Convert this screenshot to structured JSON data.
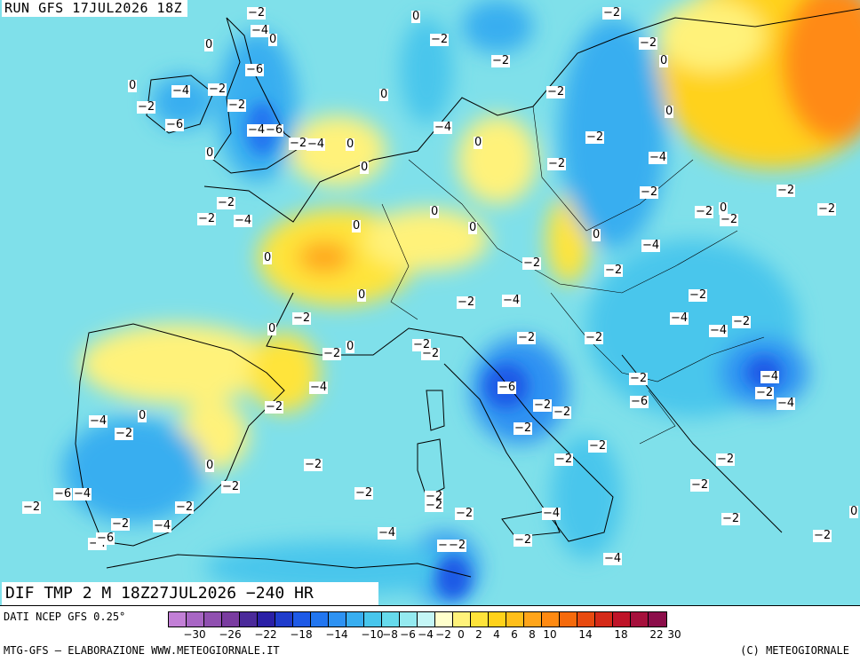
{
  "header": {
    "run": "RUN GFS 17JUL2026 18Z"
  },
  "title": "DIF TMP 2 M 18Z27JUL2026 −240 HR",
  "footer": {
    "source": "DATI NCEP GFS 0.25°",
    "credits": "MTG-GFS – ELABORAZIONE WWW.METEOGIORNALE.IT",
    "copyright": "(C) METEOGIORNALE"
  },
  "legend": {
    "colors": [
      "#c27fd6",
      "#a866c4",
      "#9050b0",
      "#7a3ca0",
      "#4b2a9a",
      "#2a1fa6",
      "#1f3ccc",
      "#1e5ae6",
      "#2276f0",
      "#2e92f2",
      "#38aef0",
      "#48c6ec",
      "#66daec",
      "#94eaf0",
      "#c4f6f6",
      "#ffffcc",
      "#fff27a",
      "#ffe43a",
      "#ffd21a",
      "#ffbf1a",
      "#ffa51a",
      "#ff8a12",
      "#f56a0c",
      "#e84a10",
      "#d52a18",
      "#bf1428",
      "#a6103c",
      "#8c0e4a"
    ],
    "ticks": [
      "−30",
      "−26",
      "−22",
      "−18",
      "−14",
      "−10",
      "−8",
      "−6",
      "−4",
      "−2",
      "0",
      "2",
      "4",
      "6",
      "8",
      "10",
      "14",
      "18",
      "22",
      "30"
    ],
    "tick_swatch_index": [
      1,
      3,
      5,
      7,
      9,
      11,
      12,
      13,
      14,
      15,
      16,
      17,
      18,
      19,
      20,
      21,
      23,
      25,
      27,
      28
    ]
  },
  "map_values": [
    {
      "t": "−2"
    },
    {
      "t": "0"
    },
    {
      "t": "−2"
    },
    {
      "t": "−4"
    },
    {
      "t": "0"
    },
    {
      "t": "0"
    },
    {
      "t": "−2"
    },
    {
      "t": "−2"
    },
    {
      "t": "−2"
    },
    {
      "t": "0"
    },
    {
      "t": "−4"
    },
    {
      "t": "−2"
    },
    {
      "t": "−6"
    },
    {
      "t": "−2"
    },
    {
      "t": "−2"
    },
    {
      "t": "0"
    },
    {
      "t": "−2"
    },
    {
      "t": "0"
    },
    {
      "t": "−6"
    },
    {
      "t": "−4"
    },
    {
      "t": "−6"
    },
    {
      "t": "0"
    },
    {
      "t": "−2"
    },
    {
      "t": "−4"
    },
    {
      "t": "0"
    },
    {
      "t": "−4"
    },
    {
      "t": "0"
    },
    {
      "t": "0"
    },
    {
      "t": "−2"
    },
    {
      "t": "−4"
    },
    {
      "t": "0"
    },
    {
      "t": "−2"
    },
    {
      "t": "−2"
    },
    {
      "t": "−2"
    },
    {
      "t": "−4"
    },
    {
      "t": "0"
    },
    {
      "t": "−2"
    },
    {
      "t": "0"
    },
    {
      "t": "−2"
    },
    {
      "t": "−2"
    },
    {
      "t": "0"
    },
    {
      "t": "−2"
    },
    {
      "t": "−4"
    },
    {
      "t": "−2"
    },
    {
      "t": "0"
    },
    {
      "t": "−2"
    },
    {
      "t": "−2"
    },
    {
      "t": "0"
    },
    {
      "t": "−2"
    },
    {
      "t": "0"
    },
    {
      "t": "−2"
    },
    {
      "t": "−4"
    },
    {
      "t": "−2"
    },
    {
      "t": "−4"
    },
    {
      "t": "−2"
    },
    {
      "t": "0"
    },
    {
      "t": "−2"
    },
    {
      "t": "−2"
    },
    {
      "t": "−4"
    },
    {
      "t": "−2"
    },
    {
      "t": "−2"
    },
    {
      "t": "0"
    },
    {
      "t": "−2"
    },
    {
      "t": "0"
    },
    {
      "t": "−4"
    },
    {
      "t": "−6"
    },
    {
      "t": "−2"
    },
    {
      "t": "−4"
    },
    {
      "t": "−6"
    },
    {
      "t": "−2"
    },
    {
      "t": "−4"
    },
    {
      "t": "−2"
    },
    {
      "t": "−2"
    },
    {
      "t": "−2"
    },
    {
      "t": "0"
    },
    {
      "t": "−4"
    },
    {
      "t": "−2"
    },
    {
      "t": "−2"
    },
    {
      "t": "−2"
    },
    {
      "t": "−2"
    },
    {
      "t": "−2"
    },
    {
      "t": "−2"
    },
    {
      "t": "−4"
    },
    {
      "t": "−2"
    },
    {
      "t": "−6"
    },
    {
      "t": "−2"
    },
    {
      "t": "−4"
    },
    {
      "t": "−2"
    },
    {
      "t": "0"
    },
    {
      "t": "−2"
    },
    {
      "t": "−4"
    },
    {
      "t": "−2"
    },
    {
      "t": "−2"
    },
    {
      "t": "−2"
    },
    {
      "t": "−2"
    },
    {
      "t": "−2"
    },
    {
      "t": "−4"
    },
    {
      "t": "−6"
    },
    {
      "t": "−4"
    },
    {
      "t": "−2"
    },
    {
      "t": "−2"
    },
    {
      "t": "−4"
    },
    {
      "t": "−2"
    },
    {
      "t": "0"
    },
    {
      "t": "−2"
    },
    {
      "t": "−2"
    }
  ]
}
